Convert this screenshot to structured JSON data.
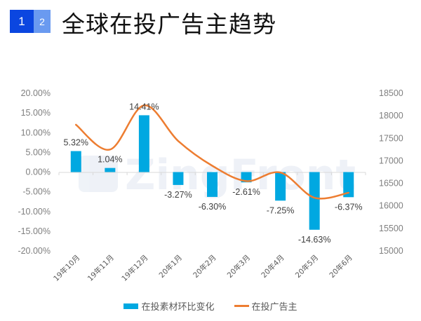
{
  "header": {
    "page_tabs": [
      "1",
      "2"
    ],
    "title": "全球在投广告主趋势"
  },
  "watermark": "ZingFront",
  "colors": {
    "bar": "#00a8e1",
    "line": "#ed7d31",
    "tab_active": "#0b46e0",
    "tab_inactive": "#6a9af0"
  },
  "chart_data": {
    "type": "bar+line",
    "title": "全球在投广告主趋势",
    "categories": [
      "19年10月",
      "19年11月",
      "19年12月",
      "20年1月",
      "20年2月",
      "20年3月",
      "20年4月",
      "20年5月",
      "20年6月"
    ],
    "series": [
      {
        "name": "在投素材环比变化",
        "type": "bar",
        "axis": "left",
        "values": [
          5.32,
          1.04,
          14.41,
          -3.27,
          -6.3,
          -2.61,
          -7.25,
          -14.63,
          -6.37
        ],
        "labels": [
          "5.32%",
          "1.04%",
          "14.41%",
          "-3.27%",
          "-6.30%",
          "-2.61%",
          "-7.25%",
          "-14.63%",
          "-6.37%"
        ]
      },
      {
        "name": "在投广告主",
        "type": "line",
        "axis": "right",
        "smooth": true,
        "values": [
          17800,
          17250,
          18230,
          17440,
          16890,
          16550,
          16740,
          16180,
          16290
        ]
      }
    ],
    "y_left": {
      "ylim": [
        -20,
        20
      ],
      "ticks": [
        "20.00%",
        "15.00%",
        "10.00%",
        "5.00%",
        "0.00%",
        "-5.00%",
        "-10.00%",
        "-15.00%",
        "-20.00%"
      ]
    },
    "y_right": {
      "ylim": [
        15000,
        18500
      ],
      "ticks": [
        "18500",
        "18000",
        "17500",
        "17000",
        "16500",
        "16000",
        "15500",
        "15000"
      ]
    },
    "grid": false,
    "legend": "bottom"
  }
}
